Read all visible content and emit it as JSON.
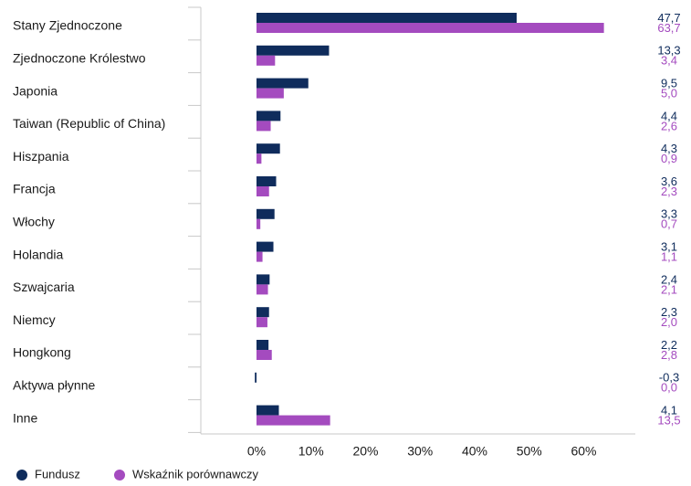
{
  "chart_data": {
    "type": "bar",
    "orientation": "horizontal",
    "categories": [
      "Stany Zjednoczone",
      "Zjednoczone Królestwo",
      "Japonia",
      "Taiwan (Republic of China)",
      "Hiszpania",
      "Francja",
      "Włochy",
      "Holandia",
      "Szwajcaria",
      "Niemcy",
      "Hongkong",
      "Aktywa płynne",
      "Inne"
    ],
    "series": [
      {
        "name": "Fundusz",
        "color": "#0f2c5c",
        "values": [
          47.7,
          13.3,
          9.5,
          4.4,
          4.3,
          3.6,
          3.3,
          3.1,
          2.4,
          2.3,
          2.2,
          -0.3,
          4.1
        ],
        "labels": [
          "47,7",
          "13,3",
          "9,5",
          "4,4",
          "4,3",
          "3,6",
          "3,3",
          "3,1",
          "2,4",
          "2,3",
          "2,2",
          "-0,3",
          "4,1"
        ]
      },
      {
        "name": "Wskaźnik porównawczy",
        "color": "#a44bbf",
        "values": [
          63.7,
          3.4,
          5.0,
          2.6,
          0.9,
          2.3,
          0.7,
          1.1,
          2.1,
          2.0,
          2.8,
          0.0,
          13.5
        ],
        "labels": [
          "63,7",
          "3,4",
          "5,0",
          "2,6",
          "0,9",
          "2,3",
          "0,7",
          "1,1",
          "2,1",
          "2,0",
          "2,8",
          "0,0",
          "13,5"
        ]
      }
    ],
    "xlim": [
      -10,
      70
    ],
    "ticks": [
      0,
      10,
      20,
      30,
      40,
      50,
      60
    ],
    "tick_labels": [
      "0%",
      "10%",
      "20%",
      "30%",
      "40%",
      "50%",
      "60%"
    ],
    "legend_position": "bottom-left",
    "grid": false
  }
}
